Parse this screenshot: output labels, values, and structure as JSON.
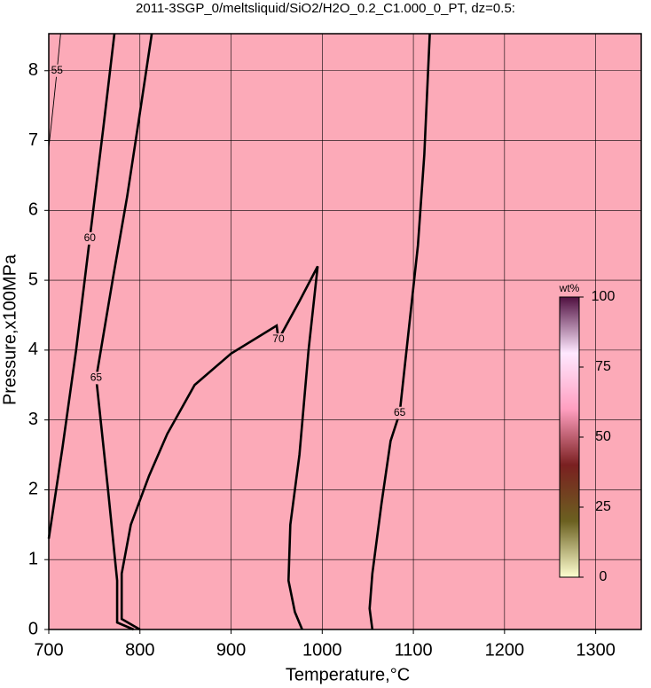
{
  "chart_data": {
    "type": "contour",
    "title": "2011-3SGP_0/meltsliquid/SiO2/H2O_0.2_C1.000_0_PT, dz=0.5:",
    "x_label": "Temperature,°C",
    "y_label": "Pressure,x100MPa",
    "xlim": [
      700,
      1350
    ],
    "ylim": [
      0,
      8.53
    ],
    "xticks": [
      700,
      800,
      900,
      1000,
      1100,
      1200,
      1300
    ],
    "yticks": [
      0,
      1,
      2,
      3,
      4,
      5,
      6,
      7,
      8
    ],
    "grid": true,
    "background_color": "#fcaab8",
    "line_color": "#000000",
    "series": [
      {
        "name": "55",
        "bold": false,
        "x": [
          700,
          705,
          709,
          713
        ],
        "y": [
          6.9,
          7.5,
          8.0,
          8.53
        ]
      },
      {
        "name": "60",
        "bold": true,
        "x": [
          700,
          715,
          730,
          745,
          760,
          772
        ],
        "y": [
          1.3,
          2.6,
          4.0,
          5.6,
          7.2,
          8.53
        ]
      },
      {
        "name": "65",
        "bold": true,
        "x": [
          793,
          775,
          775,
          765,
          752,
          770,
          786,
          800,
          813
        ],
        "y": [
          0,
          0.1,
          0.7,
          2.0,
          3.6,
          5.0,
          6.2,
          7.4,
          8.53
        ]
      },
      {
        "name": "70",
        "bold": true,
        "x": [
          800,
          780,
          780,
          790,
          810,
          830,
          860,
          900,
          950,
          952,
          975,
          995,
          985,
          975,
          965,
          963,
          970,
          978
        ],
        "y": [
          0,
          0.15,
          0.8,
          1.5,
          2.2,
          2.8,
          3.5,
          3.95,
          4.35,
          4.15,
          4.7,
          5.2,
          4.0,
          2.5,
          1.5,
          0.7,
          0.25,
          0
        ]
      },
      {
        "name": "65",
        "bold": true,
        "x": [
          1055,
          1052,
          1055,
          1065,
          1075,
          1085,
          1095,
          1105,
          1112,
          1118
        ],
        "y": [
          0,
          0.3,
          0.8,
          1.8,
          2.7,
          3.1,
          4.3,
          5.5,
          6.8,
          8.53
        ]
      }
    ],
    "colorbar": {
      "label": "wt%",
      "lim": [
        0,
        100
      ],
      "ticks": [
        0,
        25,
        50,
        75,
        100
      ],
      "colors": [
        "#ffffd0",
        "#6b6020",
        "#7a2020",
        "#ff9fc0",
        "#ffe8ff",
        "#501040"
      ]
    }
  }
}
